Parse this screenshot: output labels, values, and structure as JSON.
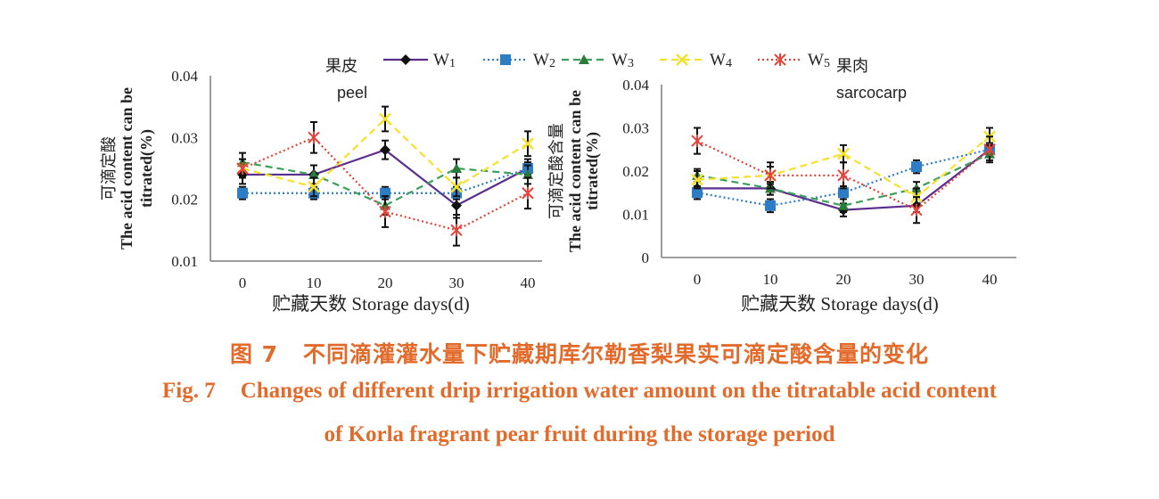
{
  "legend": [
    {
      "name": "W1",
      "color": "#5b2d8e",
      "dash": "",
      "marker": "diamond",
      "marker_color": "#111111"
    },
    {
      "name": "W2",
      "color": "#2e7dc4",
      "dash": "2,3",
      "marker": "square",
      "marker_color": "#2e7dc4"
    },
    {
      "name": "W3",
      "color": "#3aa05a",
      "dash": "8,5",
      "marker": "triangle",
      "marker_color": "#2a7a3a"
    },
    {
      "name": "W4",
      "color": "#f5e12a",
      "dash": "8,5",
      "marker": "x",
      "marker_color": "#f5e12a"
    },
    {
      "name": "W5",
      "color": "#e0443a",
      "dash": "2,3",
      "marker": "star",
      "marker_color": "#e0443a"
    }
  ],
  "chart_data": [
    {
      "type": "line",
      "panel_label_cn": "果皮",
      "panel_label_en": "peel",
      "ylabel_cn": "可滴定酸",
      "ylabel_en_1": "The acid content can be",
      "ylabel_en_2": "titrated(%)",
      "xlabel": "贮藏天数 Storage days(d)",
      "x": [
        0,
        10,
        20,
        30,
        40
      ],
      "ylim": [
        0.01,
        0.04
      ],
      "yticks": [
        "0.01",
        "0.02",
        "0.03",
        "0.04"
      ],
      "xticks": [
        "0",
        "10",
        "20",
        "30",
        "40"
      ],
      "series": [
        {
          "name": "W1",
          "values": [
            0.024,
            0.024,
            0.028,
            0.019,
            0.025
          ],
          "err": [
            0.0015,
            0.0015,
            0.0015,
            0.002,
            0.0015
          ]
        },
        {
          "name": "W2",
          "values": [
            0.021,
            0.021,
            0.021,
            0.021,
            0.025
          ],
          "err": [
            0.001,
            0.001,
            0.001,
            0.001,
            0.001
          ]
        },
        {
          "name": "W3",
          "values": [
            0.026,
            0.024,
            0.019,
            0.025,
            0.024
          ],
          "err": [
            0.0015,
            0.0015,
            0.0015,
            0.0015,
            0.0015
          ]
        },
        {
          "name": "W4",
          "values": [
            0.025,
            0.022,
            0.033,
            0.022,
            0.029
          ],
          "err": [
            0.0015,
            0.0015,
            0.002,
            0.0015,
            0.002
          ]
        },
        {
          "name": "W5",
          "values": [
            0.025,
            0.03,
            0.018,
            0.015,
            0.021
          ],
          "err": [
            0.0015,
            0.0025,
            0.0025,
            0.0025,
            0.0025
          ]
        }
      ]
    },
    {
      "type": "line",
      "panel_label_cn": "果肉",
      "panel_label_en": "sarcocarp",
      "ylabel_cn": "可滴定酸含量",
      "ylabel_en_1": "The acid content can be",
      "ylabel_en_2": "titrated(%)",
      "xlabel": "贮藏天数 Storage days(d)",
      "x": [
        0,
        10,
        20,
        30,
        40
      ],
      "ylim": [
        0,
        0.04
      ],
      "yticks": [
        "0",
        "0.01",
        "0.02",
        "0.03",
        "0.04"
      ],
      "xticks": [
        "0",
        "10",
        "20",
        "30",
        "40"
      ],
      "series": [
        {
          "name": "W1",
          "values": [
            0.016,
            0.016,
            0.011,
            0.012,
            0.025
          ],
          "err": [
            0.0015,
            0.0015,
            0.0015,
            0.0015,
            0.0015
          ]
        },
        {
          "name": "W2",
          "values": [
            0.015,
            0.012,
            0.015,
            0.021,
            0.025
          ],
          "err": [
            0.0015,
            0.0015,
            0.0015,
            0.0015,
            0.0015
          ]
        },
        {
          "name": "W3",
          "values": [
            0.019,
            0.016,
            0.012,
            0.016,
            0.024
          ],
          "err": [
            0.0015,
            0.0015,
            0.0015,
            0.0015,
            0.0015
          ]
        },
        {
          "name": "W4",
          "values": [
            0.018,
            0.019,
            0.024,
            0.014,
            0.028
          ],
          "err": [
            0.002,
            0.002,
            0.002,
            0.002,
            0.002
          ]
        },
        {
          "name": "W5",
          "values": [
            0.027,
            0.019,
            0.019,
            0.011,
            0.025
          ],
          "err": [
            0.003,
            0.003,
            0.003,
            0.003,
            0.003
          ]
        }
      ]
    }
  ],
  "caption": {
    "cn_label": "图 7",
    "cn_text": "不同滴灌灌水量下贮藏期库尔勒香梨果实可滴定酸含量的变化",
    "en_label": "Fig. 7",
    "en_line1": "Changes of different drip irrigation water amount on the titratable acid content",
    "en_line2": "of Korla fragrant pear fruit during the storage period"
  }
}
